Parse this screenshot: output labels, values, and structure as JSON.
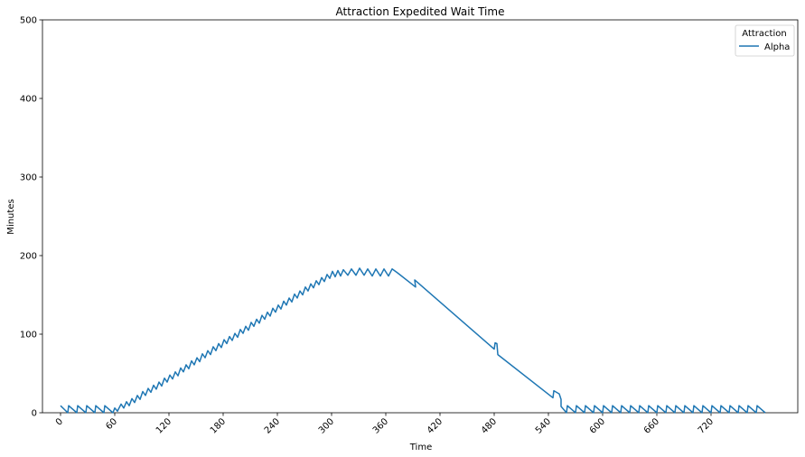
{
  "chart_data": {
    "type": "line",
    "title": "Attraction Expedited Wait Time",
    "xlabel": "Time",
    "ylabel": "Minutes",
    "xlim": [
      -20,
      816
    ],
    "ylim": [
      0,
      500
    ],
    "x_ticks": [
      0,
      60,
      120,
      180,
      240,
      300,
      360,
      420,
      480,
      540,
      600,
      660,
      720
    ],
    "y_ticks": [
      0,
      100,
      200,
      300,
      400,
      500
    ],
    "x_tick_rotation": 45,
    "grid": false,
    "legend": {
      "title": "Attraction",
      "placement": "top-right"
    },
    "series": [
      {
        "name": "Alpha",
        "color": "#1f77b4",
        "points": [
          [
            0,
            9
          ],
          [
            8,
            0
          ],
          [
            9,
            9
          ],
          [
            18,
            0
          ],
          [
            19,
            9
          ],
          [
            28,
            0
          ],
          [
            29,
            9
          ],
          [
            38,
            0
          ],
          [
            39,
            9
          ],
          [
            48,
            0
          ],
          [
            49,
            9
          ],
          [
            58,
            0
          ],
          [
            60,
            6
          ],
          [
            63,
            2
          ],
          [
            67,
            11
          ],
          [
            70,
            6
          ],
          [
            73,
            14
          ],
          [
            76,
            9
          ],
          [
            79,
            18
          ],
          [
            82,
            13
          ],
          [
            85,
            22
          ],
          [
            88,
            17
          ],
          [
            91,
            27
          ],
          [
            94,
            22
          ],
          [
            97,
            31
          ],
          [
            100,
            26
          ],
          [
            103,
            35
          ],
          [
            106,
            30
          ],
          [
            109,
            39
          ],
          [
            112,
            34
          ],
          [
            115,
            44
          ],
          [
            118,
            39
          ],
          [
            121,
            48
          ],
          [
            124,
            43
          ],
          [
            127,
            52
          ],
          [
            130,
            47
          ],
          [
            133,
            57
          ],
          [
            136,
            52
          ],
          [
            139,
            61
          ],
          [
            142,
            56
          ],
          [
            145,
            66
          ],
          [
            148,
            61
          ],
          [
            151,
            70
          ],
          [
            154,
            65
          ],
          [
            157,
            75
          ],
          [
            160,
            70
          ],
          [
            163,
            79
          ],
          [
            166,
            74
          ],
          [
            169,
            84
          ],
          [
            172,
            79
          ],
          [
            175,
            88
          ],
          [
            178,
            83
          ],
          [
            181,
            93
          ],
          [
            184,
            88
          ],
          [
            187,
            97
          ],
          [
            190,
            92
          ],
          [
            193,
            101
          ],
          [
            196,
            96
          ],
          [
            199,
            106
          ],
          [
            202,
            101
          ],
          [
            205,
            110
          ],
          [
            208,
            105
          ],
          [
            211,
            115
          ],
          [
            214,
            110
          ],
          [
            217,
            119
          ],
          [
            220,
            114
          ],
          [
            223,
            124
          ],
          [
            226,
            119
          ],
          [
            229,
            128
          ],
          [
            232,
            123
          ],
          [
            235,
            133
          ],
          [
            238,
            128
          ],
          [
            241,
            137
          ],
          [
            244,
            132
          ],
          [
            247,
            142
          ],
          [
            250,
            137
          ],
          [
            253,
            146
          ],
          [
            256,
            141
          ],
          [
            259,
            151
          ],
          [
            262,
            146
          ],
          [
            265,
            155
          ],
          [
            268,
            150
          ],
          [
            271,
            160
          ],
          [
            274,
            155
          ],
          [
            277,
            164
          ],
          [
            280,
            159
          ],
          [
            283,
            168
          ],
          [
            286,
            163
          ],
          [
            289,
            172
          ],
          [
            292,
            167
          ],
          [
            295,
            176
          ],
          [
            298,
            171
          ],
          [
            301,
            180
          ],
          [
            304,
            173
          ],
          [
            307,
            181
          ],
          [
            310,
            174
          ],
          [
            313,
            182
          ],
          [
            318,
            175
          ],
          [
            322,
            183
          ],
          [
            327,
            175
          ],
          [
            331,
            184
          ],
          [
            336,
            175
          ],
          [
            340,
            183
          ],
          [
            345,
            174
          ],
          [
            349,
            183
          ],
          [
            354,
            174
          ],
          [
            358,
            183
          ],
          [
            363,
            174
          ],
          [
            367,
            183
          ],
          [
            373,
            178
          ],
          [
            393,
            160
          ],
          [
            392,
            169
          ],
          [
            480,
            81
          ],
          [
            481,
            89
          ],
          [
            483,
            88
          ],
          [
            484,
            74
          ],
          [
            545,
            19
          ],
          [
            546,
            28
          ],
          [
            552,
            24
          ],
          [
            554,
            17
          ],
          [
            554,
            8
          ],
          [
            557,
            4
          ],
          [
            560,
            0
          ],
          [
            561,
            9
          ],
          [
            570,
            0
          ],
          [
            571,
            9
          ],
          [
            580,
            0
          ],
          [
            581,
            9
          ],
          [
            590,
            0
          ],
          [
            591,
            9
          ],
          [
            600,
            0
          ],
          [
            601,
            9
          ],
          [
            610,
            0
          ],
          [
            611,
            9
          ],
          [
            620,
            0
          ],
          [
            621,
            9
          ],
          [
            630,
            0
          ],
          [
            631,
            9
          ],
          [
            640,
            0
          ],
          [
            641,
            9
          ],
          [
            650,
            0
          ],
          [
            651,
            9
          ],
          [
            660,
            0
          ],
          [
            661,
            9
          ],
          [
            670,
            0
          ],
          [
            671,
            9
          ],
          [
            680,
            0
          ],
          [
            681,
            9
          ],
          [
            690,
            0
          ],
          [
            691,
            9
          ],
          [
            700,
            0
          ],
          [
            701,
            9
          ],
          [
            710,
            0
          ],
          [
            711,
            9
          ],
          [
            720,
            0
          ],
          [
            721,
            9
          ],
          [
            730,
            0
          ],
          [
            731,
            9
          ],
          [
            740,
            0
          ],
          [
            741,
            9
          ],
          [
            750,
            0
          ],
          [
            751,
            9
          ],
          [
            760,
            0
          ],
          [
            761,
            9
          ],
          [
            770,
            0
          ],
          [
            771,
            9
          ],
          [
            780,
            0
          ]
        ]
      }
    ]
  }
}
